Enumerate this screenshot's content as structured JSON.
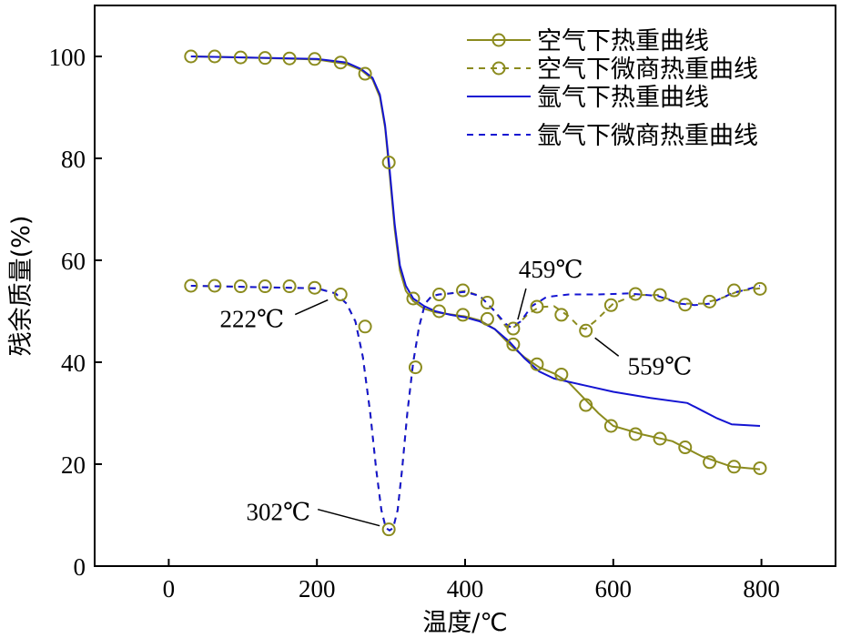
{
  "chart_data": {
    "type": "line",
    "title": "",
    "xlabel": "温度/℃",
    "ylabel": "残余质量(%)",
    "xlim": [
      -100,
      900
    ],
    "ylim": [
      0,
      110
    ],
    "xticks": [
      0,
      200,
      400,
      600,
      800
    ],
    "yticks": [
      0,
      20,
      40,
      60,
      80,
      100
    ],
    "grid": false,
    "legend_position": "top-right",
    "colors": {
      "air": "#8B8B1E",
      "argon": "#1414D2"
    },
    "series": [
      {
        "name": "空气下热重曲线",
        "style": "solid-marker",
        "color_key": "air",
        "x": [
          30,
          100,
          200,
          240,
          260,
          275,
          285,
          292,
          298,
          305,
          312,
          320,
          330,
          345,
          360,
          380,
          400,
          420,
          440,
          460,
          480,
          500,
          520,
          540,
          560,
          580,
          600,
          640,
          680,
          720,
          760,
          798
        ],
        "y": [
          100,
          99.8,
          99.4,
          98.5,
          97.3,
          95.5,
          92,
          86,
          77,
          66,
          58,
          54,
          52,
          50.5,
          49.8,
          49.4,
          49,
          48.2,
          46.5,
          43.5,
          41,
          39,
          37.8,
          36,
          33,
          30,
          27.5,
          25.8,
          24.5,
          21.5,
          19.5,
          19
        ]
      },
      {
        "name": "空气下微商热重曲线",
        "style": "dashed-marker",
        "color_key": "air",
        "x": [
          30,
          200,
          225,
          240,
          252,
          262,
          272,
          280,
          287,
          293,
          298,
          303,
          309,
          315,
          322,
          330,
          338,
          346,
          355,
          365,
          380,
          400,
          420,
          440,
          455,
          462,
          472,
          485,
          500,
          520,
          540,
          555,
          562,
          575,
          600,
          630,
          660,
          690,
          720,
          745,
          770,
          798
        ],
        "y": [
          55,
          54.5,
          53.5,
          51.5,
          48,
          41,
          30,
          19,
          11,
          7.5,
          7,
          7.5,
          11,
          19,
          30,
          40,
          47,
          51.5,
          53,
          53.3,
          53.5,
          54,
          53,
          50,
          47,
          46.5,
          47.5,
          49.5,
          50.8,
          51,
          49,
          46.8,
          46.5,
          48,
          51.5,
          53.2,
          53.2,
          51.5,
          51.5,
          52.5,
          54,
          54.5
        ]
      },
      {
        "name": "氩气下热重曲线",
        "style": "solid",
        "color_key": "argon",
        "x": [
          30,
          100,
          200,
          240,
          260,
          275,
          285,
          292,
          298,
          305,
          312,
          320,
          330,
          345,
          360,
          380,
          400,
          420,
          440,
          460,
          480,
          500,
          520,
          560,
          600,
          650,
          700,
          720,
          740,
          760,
          798
        ],
        "y": [
          100,
          99.8,
          99.5,
          98.8,
          97.5,
          95.8,
          92.5,
          86.5,
          78,
          67,
          59,
          55,
          52.5,
          51,
          50,
          49.3,
          48.8,
          48,
          46.5,
          44,
          40.8,
          38.2,
          36.8,
          35.5,
          34.2,
          33,
          32,
          30.5,
          29,
          27.8,
          27.5
        ]
      },
      {
        "name": "氩气下微商热重曲线",
        "style": "dashed",
        "color_key": "argon",
        "x": [
          30,
          200,
          225,
          240,
          252,
          262,
          272,
          280,
          287,
          293,
          298,
          303,
          309,
          315,
          322,
          330,
          338,
          346,
          355,
          365,
          380,
          400,
          420,
          440,
          455,
          462,
          475,
          490,
          510,
          540,
          580,
          620,
          660,
          690,
          710,
          730,
          760,
          798
        ],
        "y": [
          55,
          54.5,
          53.5,
          51.5,
          48,
          41,
          30,
          19,
          11,
          7.5,
          7,
          7.5,
          11,
          19,
          30,
          40,
          47,
          51.5,
          53,
          53.3,
          53.5,
          53.8,
          53,
          50,
          47.5,
          46.8,
          48,
          51,
          52.8,
          53.3,
          53.3,
          53.5,
          53,
          51.5,
          51.2,
          51.5,
          53.5,
          55
        ]
      }
    ],
    "markers": {
      "air_tg": {
        "x": [
          30,
          62,
          97,
          130,
          163,
          197,
          232,
          265,
          297,
          330,
          365,
          397,
          430,
          465,
          497,
          530,
          563,
          597,
          630,
          663,
          697,
          730,
          763,
          798
        ],
        "y": [
          100,
          100,
          99.8,
          99.7,
          99.6,
          99.5,
          98.8,
          96.6,
          79.2,
          52.5,
          50,
          49.3,
          48.5,
          43.5,
          39.6,
          37.6,
          31.6,
          27.5,
          25.9,
          25,
          23.3,
          20.4,
          19.5,
          19.2
        ]
      },
      "air_dtg": {
        "x": [
          30,
          62,
          97,
          130,
          163,
          197,
          232,
          265,
          297,
          333,
          365,
          397,
          430,
          465,
          497,
          530,
          563,
          597,
          630,
          663,
          697,
          730,
          763,
          798
        ],
        "y": [
          55,
          55,
          54.9,
          54.9,
          54.9,
          54.6,
          53.3,
          47,
          7.2,
          39,
          53.3,
          54.1,
          51.7,
          46.6,
          50.9,
          49.3,
          46.2,
          51.2,
          53.4,
          53.2,
          51.3,
          51.9,
          54.1,
          54.4
        ]
      }
    },
    "legend": [
      "空气下热重曲线",
      "空气下微商热重曲线",
      "氩气下热重曲线",
      "氩气下微商热重曲线"
    ],
    "annotations": [
      {
        "text": "222℃",
        "point_x": 232,
        "point_y": 53.3,
        "label_side": "lower-left"
      },
      {
        "text": "302℃",
        "point_x": 297,
        "point_y": 7.2,
        "label_side": "left"
      },
      {
        "text": "459℃",
        "point_x": 465,
        "point_y": 46.6,
        "label_side": "upper-right"
      },
      {
        "text": "559℃",
        "point_x": 563,
        "point_y": 46.2,
        "label_side": "lower-right"
      }
    ]
  }
}
